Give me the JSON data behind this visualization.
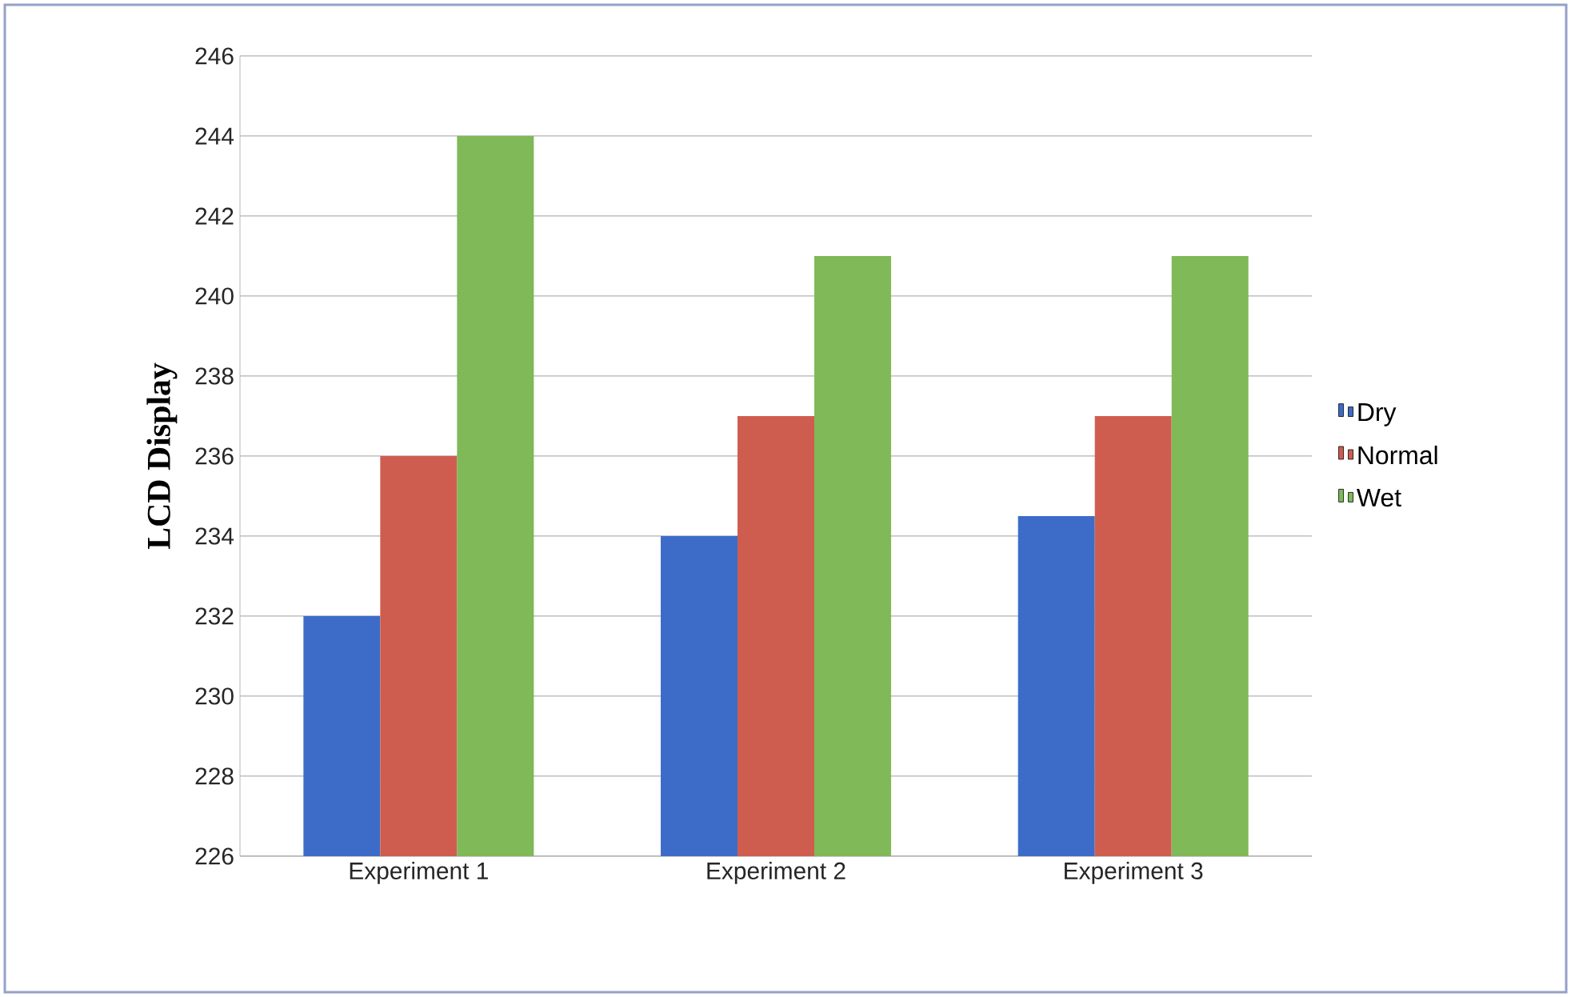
{
  "chart_data": {
    "type": "bar",
    "ylabel": "LCD Display",
    "categories": [
      "Experiment 1",
      "Experiment 2",
      "Experiment 3"
    ],
    "series": [
      {
        "name": "Dry",
        "color": "#3d6cc8",
        "values": [
          232,
          234,
          234.5
        ]
      },
      {
        "name": "Normal",
        "color": "#cf5d4f",
        "values": [
          236,
          237,
          237
        ]
      },
      {
        "name": "Wet",
        "color": "#7fb958",
        "values": [
          244,
          241,
          241
        ]
      }
    ],
    "ylim": [
      226,
      246
    ],
    "yticks": [
      226,
      228,
      230,
      232,
      234,
      236,
      238,
      240,
      242,
      244,
      246
    ],
    "grid": "y",
    "legend": "right"
  }
}
